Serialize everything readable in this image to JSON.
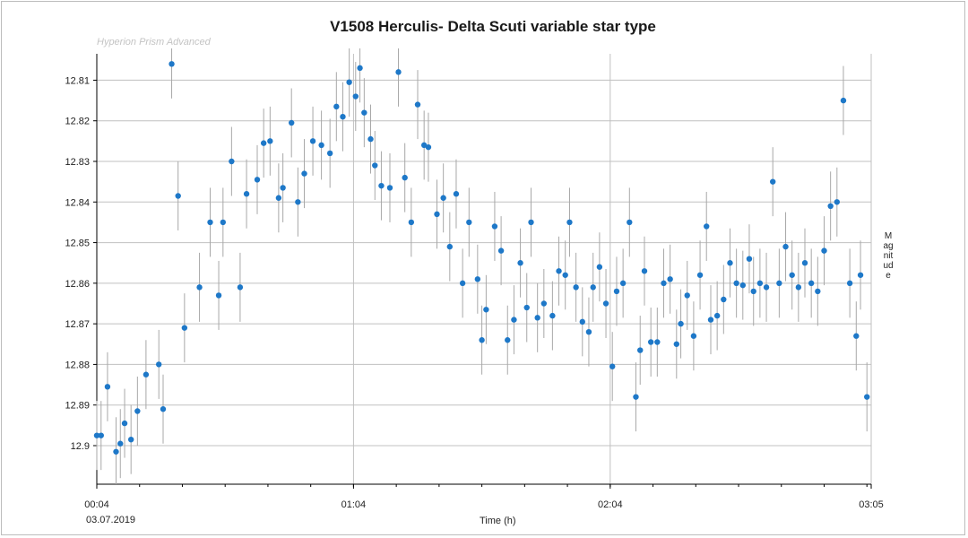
{
  "watermark": "Hyperion Prism Advanced",
  "date_label": "03.07.2019",
  "colors": {
    "point": "#1e78c8",
    "errorbar": "#a8a8a8",
    "grid": "#c0c0c0",
    "axis": "#000000"
  },
  "chart_data": {
    "type": "scatter",
    "title": "V1508 Herculis- Delta Scuti variable star type",
    "xlabel": "Time (h)",
    "ylabel": "Magnitude",
    "x_ticks": [
      "00:04",
      "01:04",
      "02:04",
      "03:05"
    ],
    "x_range_min": [
      0,
      181
    ],
    "y_ticks": [
      "12.81",
      "12.82",
      "12.83",
      "12.84",
      "12.85",
      "12.86",
      "12.87",
      "12.88",
      "12.89",
      "12.9"
    ],
    "y_range": [
      12.8035,
      12.9095
    ],
    "y_inverted": true,
    "grid": true,
    "series": [
      {
        "x_min": [
          0.0,
          1.0,
          2.5,
          4.5,
          5.5,
          6.5,
          8.0,
          9.5,
          11.5,
          14.5,
          15.5,
          17.5,
          19.0,
          20.5,
          24.0,
          26.5,
          28.5,
          29.5,
          31.5,
          33.5,
          35.0,
          37.5,
          39.0,
          40.5,
          42.5,
          43.5,
          45.5,
          47.0,
          48.5,
          50.5,
          52.5,
          54.5,
          56.0,
          57.5,
          59.0,
          60.5,
          61.5,
          62.5,
          64.0,
          65.0,
          66.5,
          68.5,
          70.5,
          72.0,
          73.5,
          75.0,
          76.5,
          77.5,
          79.5,
          81.0,
          82.5,
          84.0,
          85.5,
          87.0,
          89.0,
          90.0,
          91.0,
          93.0,
          94.5,
          96.0,
          97.5,
          99.0,
          100.5,
          101.5,
          103.0,
          104.5,
          106.5,
          108.0,
          109.5,
          110.5,
          112.0,
          113.5,
          115.0,
          116.0,
          117.5,
          119.0,
          120.5,
          121.5,
          123.0,
          124.5,
          126.0,
          127.0,
          128.0,
          129.5,
          131.0,
          132.5,
          134.0,
          135.5,
          136.5,
          138.0,
          139.5,
          141.0,
          142.5,
          143.5,
          145.0,
          146.5,
          148.0,
          149.5,
          151.0,
          152.5,
          153.5,
          155.0,
          156.5,
          158.0,
          159.5,
          161.0,
          162.5,
          164.0,
          165.5,
          167.0,
          168.5,
          170.0,
          171.5,
          173.0,
          174.5,
          176.0,
          177.5,
          178.5,
          180.0
        ],
        "y": [
          12.8975,
          12.8975,
          12.8855,
          12.9015,
          12.8995,
          12.8945,
          12.8985,
          12.8915,
          12.8825,
          12.88,
          12.891,
          12.806,
          12.8385,
          12.871,
          12.861,
          12.845,
          12.863,
          12.845,
          12.83,
          12.861,
          12.838,
          12.8345,
          12.8255,
          12.825,
          12.839,
          12.8365,
          12.8205,
          12.84,
          12.833,
          12.825,
          12.826,
          12.828,
          12.8165,
          12.819,
          12.8105,
          12.814,
          12.807,
          12.818,
          12.8245,
          12.831,
          12.836,
          12.8365,
          12.808,
          12.834,
          12.845,
          12.816,
          12.826,
          12.8265,
          12.843,
          12.839,
          12.851,
          12.838,
          12.86,
          12.845,
          12.859,
          12.874,
          12.8665,
          12.846,
          12.852,
          12.874,
          12.869,
          12.855,
          12.866,
          12.845,
          12.8685,
          12.865,
          12.868,
          12.857,
          12.858,
          12.845,
          12.861,
          12.8695,
          12.872,
          12.861,
          12.856,
          12.865,
          12.8805,
          12.862,
          12.86,
          12.845,
          12.888,
          12.8765,
          12.857,
          12.8745,
          12.8745,
          12.86,
          12.859,
          12.875,
          12.87,
          12.863,
          12.873,
          12.858,
          12.846,
          12.869,
          12.868,
          12.864,
          12.855,
          12.86,
          12.8605,
          12.854,
          12.862,
          12.86,
          12.861,
          12.835,
          12.86,
          12.851,
          12.858,
          12.861,
          12.855,
          12.86,
          12.862,
          12.852,
          12.841,
          12.84,
          12.815,
          12.86,
          12.873,
          12.858,
          12.888
        ]
      }
    ]
  }
}
